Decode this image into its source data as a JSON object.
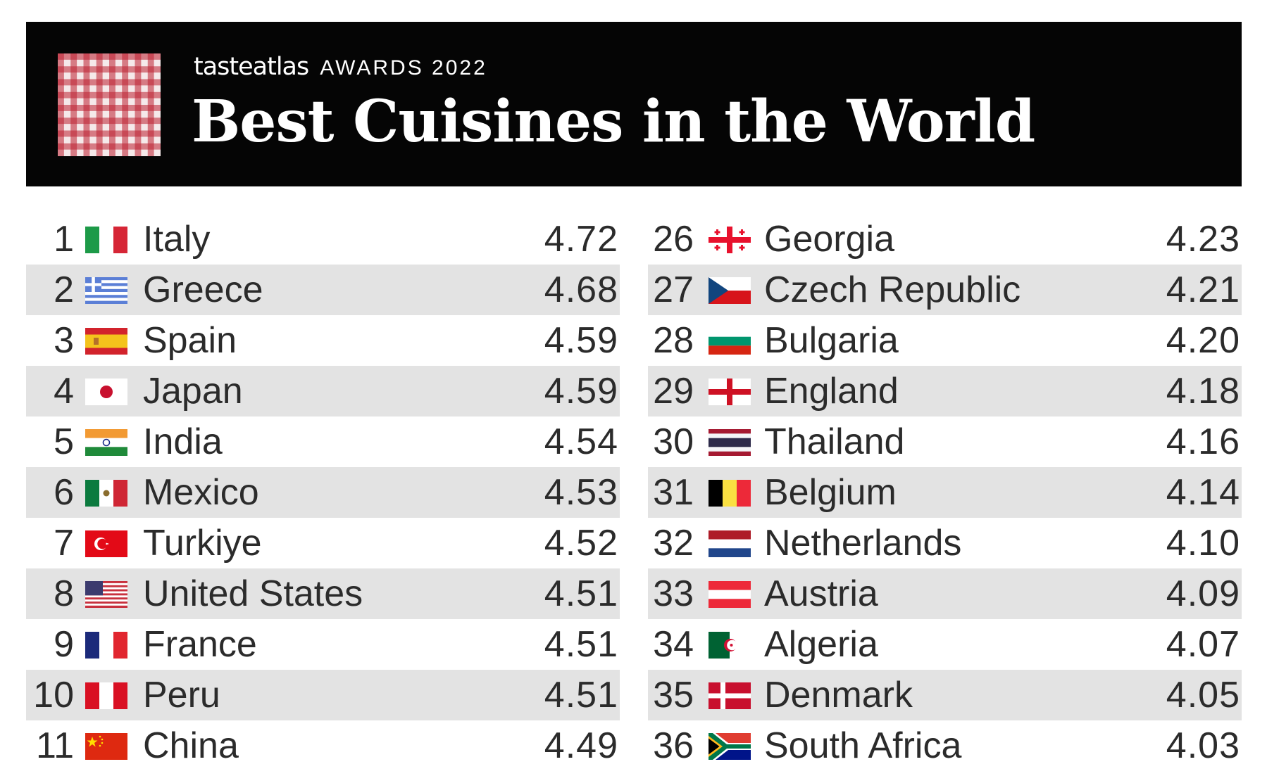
{
  "header": {
    "brand": "tasteatlas",
    "award": "AWARDS 2022",
    "title": "Best Cuisines in the World"
  },
  "colors": {
    "banner_bg": "#050505",
    "checker_red": "#bc2030",
    "row_shade": "#e3e3e3",
    "text": "#2b2b2b"
  },
  "rankings_left": [
    {
      "rank": "1",
      "country": "Italy",
      "score": "4.72",
      "flag": "italy-flag-icon"
    },
    {
      "rank": "2",
      "country": "Greece",
      "score": "4.68",
      "flag": "greece-flag-icon"
    },
    {
      "rank": "3",
      "country": "Spain",
      "score": "4.59",
      "flag": "spain-flag-icon"
    },
    {
      "rank": "4",
      "country": "Japan",
      "score": "4.59",
      "flag": "japan-flag-icon"
    },
    {
      "rank": "5",
      "country": "India",
      "score": "4.54",
      "flag": "india-flag-icon"
    },
    {
      "rank": "6",
      "country": "Mexico",
      "score": "4.53",
      "flag": "mexico-flag-icon"
    },
    {
      "rank": "7",
      "country": "Turkiye",
      "score": "4.52",
      "flag": "turkiye-flag-icon"
    },
    {
      "rank": "8",
      "country": "United States",
      "score": "4.51",
      "flag": "united-states-flag-icon"
    },
    {
      "rank": "9",
      "country": "France",
      "score": "4.51",
      "flag": "france-flag-icon"
    },
    {
      "rank": "10",
      "country": "Peru",
      "score": "4.51",
      "flag": "peru-flag-icon"
    },
    {
      "rank": "11",
      "country": "China",
      "score": "4.49",
      "flag": "china-flag-icon"
    }
  ],
  "rankings_right": [
    {
      "rank": "26",
      "country": "Georgia",
      "score": "4.23",
      "flag": "georgia-flag-icon"
    },
    {
      "rank": "27",
      "country": "Czech Republic",
      "score": "4.21",
      "flag": "czech-republic-flag-icon"
    },
    {
      "rank": "28",
      "country": "Bulgaria",
      "score": "4.20",
      "flag": "bulgaria-flag-icon"
    },
    {
      "rank": "29",
      "country": "England",
      "score": "4.18",
      "flag": "england-flag-icon"
    },
    {
      "rank": "30",
      "country": "Thailand",
      "score": "4.16",
      "flag": "thailand-flag-icon"
    },
    {
      "rank": "31",
      "country": "Belgium",
      "score": "4.14",
      "flag": "belgium-flag-icon"
    },
    {
      "rank": "32",
      "country": "Netherlands",
      "score": "4.10",
      "flag": "netherlands-flag-icon"
    },
    {
      "rank": "33",
      "country": "Austria",
      "score": "4.09",
      "flag": "austria-flag-icon"
    },
    {
      "rank": "34",
      "country": "Algeria",
      "score": "4.07",
      "flag": "algeria-flag-icon"
    },
    {
      "rank": "35",
      "country": "Denmark",
      "score": "4.05",
      "flag": "denmark-flag-icon"
    },
    {
      "rank": "36",
      "country": "South Africa",
      "score": "4.03",
      "flag": "south-africa-flag-icon"
    }
  ]
}
